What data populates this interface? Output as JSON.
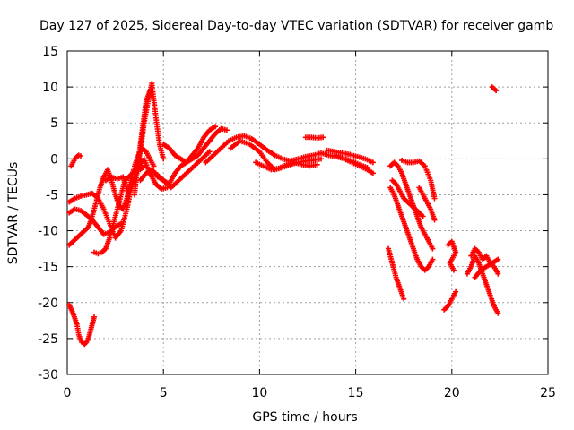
{
  "chart_data": {
    "type": "scatter",
    "title": "Day 127 of 2025, Sidereal Day-to-day VTEC variation (SDTVAR) for receiver gamb",
    "xlabel": "GPS time / hours",
    "ylabel": "SDTVAR / TECUs",
    "xlim": [
      0,
      25
    ],
    "ylim": [
      -30,
      15
    ],
    "xticks": [
      0,
      5,
      10,
      15,
      20,
      25
    ],
    "yticks": [
      -30,
      -25,
      -20,
      -15,
      -10,
      -5,
      0,
      5,
      10,
      15
    ],
    "grid": true,
    "marker": "+",
    "color": "#ff0000",
    "series": [
      {
        "name": "s1",
        "x": [
          0.1,
          0.3,
          0.5,
          0.6,
          0.75,
          0.9,
          1.0,
          1.1,
          1.2,
          1.3,
          1.4
        ],
        "y": [
          -20.3,
          -21.5,
          -23.0,
          -24.5,
          -25.5,
          -25.8,
          -25.5,
          -25.0,
          -24.0,
          -23.0,
          -22.0
        ]
      },
      {
        "name": "s2",
        "x": [
          0.2,
          0.3,
          0.4,
          0.5,
          0.6,
          0.7
        ],
        "y": [
          -1.0,
          -0.5,
          0.0,
          0.3,
          0.5,
          0.4
        ]
      },
      {
        "name": "s3",
        "x": [
          0.1,
          0.3,
          0.5,
          0.7,
          0.9,
          1.1,
          1.3,
          1.5,
          1.7,
          1.9,
          2.1,
          2.3,
          2.5,
          2.7,
          2.9,
          3.1,
          3.3,
          3.5,
          3.7,
          3.9,
          4.1,
          4.3,
          4.5
        ],
        "y": [
          -12,
          -11.5,
          -11,
          -10.5,
          -10,
          -9.5,
          -8,
          -6,
          -4,
          -2.5,
          -1.5,
          -3,
          -5,
          -6.5,
          -7,
          -5.5,
          -3,
          -1,
          0.5,
          1.5,
          1.0,
          0.0,
          -1.0
        ]
      },
      {
        "name": "s4",
        "x": [
          0.1,
          0.4,
          0.7,
          1.0,
          1.3,
          1.6,
          1.9,
          2.2,
          2.5,
          2.8,
          3.1,
          3.4,
          3.7,
          4.0,
          4.3,
          4.6,
          4.9,
          5.2
        ],
        "y": [
          -6,
          -5.5,
          -5.2,
          -5.0,
          -4.8,
          -5.5,
          -7,
          -9,
          -11,
          -10,
          -7,
          -3,
          -1,
          0,
          -2,
          -3.5,
          -4.2,
          -4.0
        ]
      },
      {
        "name": "s5",
        "x": [
          0.1,
          0.4,
          0.7,
          1.0,
          1.3,
          1.6,
          1.9,
          2.2,
          2.5,
          2.8
        ],
        "y": [
          -7.5,
          -7,
          -7.2,
          -7.8,
          -8.5,
          -9.5,
          -10.5,
          -10.2,
          -9.5,
          -9
        ]
      },
      {
        "name": "s6",
        "x": [
          1.4,
          1.6,
          1.8,
          2.0,
          2.2,
          2.4,
          2.6,
          2.8,
          3.0,
          3.2,
          3.4,
          3.6,
          3.8,
          4.0
        ],
        "y": [
          -13,
          -13.2,
          -13,
          -12.5,
          -11,
          -9,
          -7,
          -5,
          -3,
          -2.5,
          -2.0,
          -1.5,
          -1.5,
          -1.0
        ]
      },
      {
        "name": "s7",
        "x": [
          2.0,
          2.3,
          2.6,
          2.9,
          3.2,
          3.5,
          3.8,
          4.0,
          4.2,
          4.4,
          4.6,
          4.8,
          5.0
        ],
        "y": [
          -3,
          -2.5,
          -2.8,
          -2.5,
          -5,
          -3,
          1,
          5,
          8,
          10.5,
          6,
          2,
          0
        ]
      },
      {
        "name": "s8",
        "x": [
          3.5,
          3.7,
          3.9,
          4.1,
          4.3
        ],
        "y": [
          -5,
          0,
          4,
          8,
          9.5
        ]
      },
      {
        "name": "s9",
        "x": [
          3.8,
          4.1,
          4.4,
          4.7,
          5.0,
          5.3,
          5.6,
          5.9,
          6.2,
          6.5,
          6.8,
          7.1,
          7.4,
          7.7,
          8.0,
          8.3
        ],
        "y": [
          -3,
          -2,
          -1.5,
          -2.5,
          -3,
          -3.5,
          -2,
          -1,
          -0.5,
          0,
          0.5,
          1.5,
          2.5,
          3.5,
          4.2,
          4.0
        ]
      },
      {
        "name": "s10",
        "x": [
          5.0,
          5.3,
          5.6,
          5.9,
          6.2,
          6.5,
          6.8,
          7.1,
          7.4,
          7.7
        ],
        "y": [
          2,
          1.5,
          0.5,
          0,
          -0.5,
          0.5,
          1.5,
          3,
          4,
          4.5
        ]
      },
      {
        "name": "s11",
        "x": [
          4.6,
          5.0,
          5.4,
          5.8,
          6.2,
          6.6,
          7.0,
          7.4
        ],
        "y": [
          -2,
          -3,
          -4,
          -3,
          -2,
          -1,
          0,
          1
        ]
      },
      {
        "name": "s12",
        "x": [
          7.2,
          7.6,
          8.0,
          8.4,
          8.8,
          9.2,
          9.6,
          10.0,
          10.4,
          10.8,
          11.2,
          11.6,
          12.0,
          12.4,
          12.8,
          13.2,
          13.6,
          14.0,
          14.4,
          14.8,
          15.2,
          15.6
        ],
        "y": [
          -0.5,
          0.5,
          1.5,
          2.5,
          3.0,
          3.2,
          2.8,
          2.0,
          1.2,
          0.5,
          0.0,
          -0.3,
          0.0,
          0.3,
          0.5,
          0.8,
          0.5,
          0.3,
          0.0,
          -0.3,
          -0.8,
          -1.2
        ]
      },
      {
        "name": "s13",
        "x": [
          8.5,
          9.0,
          9.5,
          10.0,
          10.4,
          10.8,
          11.2,
          11.6,
          12.0,
          12.4,
          12.8,
          13.2
        ],
        "y": [
          1.5,
          2.5,
          2.0,
          1.0,
          -0.5,
          -1.5,
          -1.2,
          -0.8,
          -0.5,
          -0.3,
          -0.2,
          0.0
        ]
      },
      {
        "name": "s14",
        "x": [
          9.8,
          10.2,
          10.6,
          11.0,
          11.4,
          11.8,
          12.2,
          12.6,
          13.0
        ],
        "y": [
          -0.5,
          -1.0,
          -1.5,
          -1.3,
          -0.8,
          -0.5,
          -0.8,
          -1.0,
          -0.8
        ]
      },
      {
        "name": "s15",
        "x": [
          12.4,
          12.7,
          13.0,
          13.3
        ],
        "y": [
          3.0,
          3.0,
          2.9,
          3.0
        ]
      },
      {
        "name": "s16",
        "x": [
          13.5,
          13.9,
          14.3,
          14.7,
          15.1,
          15.5,
          15.9
        ],
        "y": [
          1.2,
          1.0,
          0.8,
          0.6,
          0.3,
          0.0,
          -0.5
        ]
      },
      {
        "name": "s17",
        "x": [
          14.0,
          14.4,
          14.8,
          15.2,
          15.6,
          15.9
        ],
        "y": [
          0.5,
          0.0,
          -0.5,
          -1.0,
          -1.5,
          -2.0
        ]
      },
      {
        "name": "s18",
        "x": [
          16.8,
          17.0,
          17.2,
          17.4,
          17.6,
          17.8,
          18.0,
          18.2,
          18.4,
          18.6,
          18.8,
          19.0
        ],
        "y": [
          -1.0,
          -0.5,
          -1.0,
          -2.0,
          -3.5,
          -5.0,
          -6.5,
          -8.0,
          -9.5,
          -10.5,
          -11.5,
          -12.5
        ]
      },
      {
        "name": "s19",
        "x": [
          17.4,
          17.7,
          18.0,
          18.3,
          18.6,
          18.9,
          19.1
        ],
        "y": [
          -0.2,
          -0.5,
          -0.5,
          -0.3,
          -1.0,
          -3.0,
          -5.5
        ]
      },
      {
        "name": "s20",
        "x": [
          16.8,
          17.0,
          17.2,
          17.4,
          17.6,
          17.8,
          18.0,
          18.2,
          18.4,
          18.6,
          18.8,
          19.0
        ],
        "y": [
          -4.0,
          -5.0,
          -6.5,
          -8.0,
          -9.5,
          -11.0,
          -12.5,
          -14.0,
          -15.0,
          -15.5,
          -15.0,
          -14.0
        ]
      },
      {
        "name": "s21",
        "x": [
          16.9,
          17.1,
          17.3,
          17.5,
          17.7,
          17.9,
          18.1,
          18.3,
          18.5
        ],
        "y": [
          -3.0,
          -3.5,
          -4.5,
          -5.5,
          -6.0,
          -6.5,
          -7.0,
          -7.5,
          -8.0
        ]
      },
      {
        "name": "s22",
        "x": [
          18.3,
          18.5,
          18.7,
          18.9,
          19.1
        ],
        "y": [
          -4.0,
          -5.0,
          -6.0,
          -7.0,
          -8.5
        ]
      },
      {
        "name": "s23",
        "x": [
          16.7,
          16.9,
          17.1,
          17.3,
          17.5
        ],
        "y": [
          -12.5,
          -14.5,
          -16.5,
          -18.0,
          -19.5
        ]
      },
      {
        "name": "s24",
        "x": [
          19.6,
          19.8,
          20.0,
          20.2
        ],
        "y": [
          -21.0,
          -20.5,
          -19.5,
          -18.5
        ]
      },
      {
        "name": "s25",
        "x": [
          19.8,
          20.0,
          20.2,
          19.9,
          20.1
        ],
        "y": [
          -12.0,
          -11.5,
          -13.0,
          -14.5,
          -15.5
        ]
      },
      {
        "name": "s26",
        "x": [
          20.8,
          21.0,
          21.2,
          21.4,
          21.6,
          21.8,
          22.0,
          22.2,
          22.4
        ],
        "y": [
          -16.0,
          -15.0,
          -13.5,
          -14.5,
          -16.0,
          -17.5,
          -19.0,
          -20.5,
          -21.5
        ]
      },
      {
        "name": "s27",
        "x": [
          21.0,
          21.2,
          21.4,
          21.6,
          21.8,
          22.0,
          22.2,
          22.4
        ],
        "y": [
          -13.5,
          -12.5,
          -13.0,
          -14.0,
          -13.5,
          -14.5,
          -15.0,
          -16.0
        ]
      },
      {
        "name": "s28",
        "x": [
          21.2,
          21.5,
          21.8,
          22.1,
          22.4
        ],
        "y": [
          -16.5,
          -15.5,
          -15.0,
          -14.5,
          -14.0
        ]
      },
      {
        "name": "s29",
        "x": [
          22.1,
          22.3
        ],
        "y": [
          10.0,
          9.5
        ]
      }
    ]
  }
}
